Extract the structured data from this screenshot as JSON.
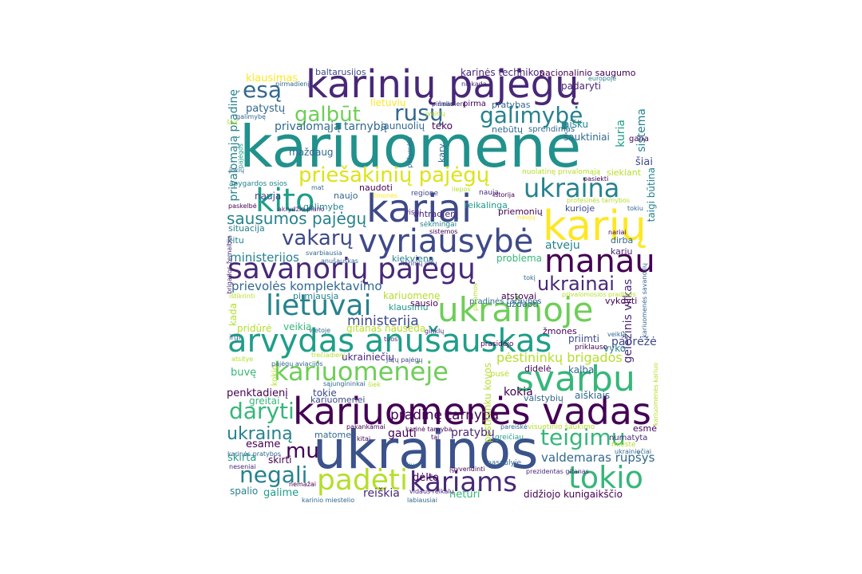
{
  "palette": [
    "#440154",
    "#482878",
    "#3e4989",
    "#31688e",
    "#26828e",
    "#1f9e89",
    "#35b779",
    "#6ece58",
    "#b5de2b",
    "#fde725"
  ],
  "words": [
    {
      "text": "kariuomenė",
      "color": "#21918c"
    },
    {
      "text": "ukrainos",
      "color": "#3b528b"
    },
    {
      "text": "karinių pajėgų",
      "color": "#482878"
    },
    {
      "text": "kariuomenės vadas",
      "color": "#440154"
    },
    {
      "text": "arvydas anušauskas",
      "color": "#1f9e89"
    },
    {
      "text": "kariai",
      "color": "#3e4989"
    },
    {
      "text": "savanorių pajėgų",
      "color": "#482878"
    },
    {
      "text": "vyriausybė",
      "color": "#3e4989"
    },
    {
      "text": "ukrainoje",
      "color": "#6ece58"
    },
    {
      "text": "karių",
      "color": "#fde725"
    },
    {
      "text": "kito",
      "color": "#1f9e89"
    },
    {
      "text": "manau",
      "color": "#440154"
    },
    {
      "text": "svarbu",
      "color": "#35b779"
    },
    {
      "text": "kariuomenėje",
      "color": "#6ece58"
    },
    {
      "text": "lietuvai",
      "color": "#26828e"
    },
    {
      "text": "tokio",
      "color": "#35b779"
    },
    {
      "text": "padėti",
      "color": "#b5de2b"
    },
    {
      "text": "kariams",
      "color": "#482878"
    },
    {
      "text": "ukraina",
      "color": "#26828e"
    },
    {
      "text": "priešakinių pajėgų",
      "color": "#dde318"
    },
    {
      "text": "galbūt",
      "color": "#6ece58"
    },
    {
      "text": "rusų",
      "color": "#31688e"
    },
    {
      "text": "galimybė",
      "color": "#26828e"
    },
    {
      "text": "esą",
      "color": "#31688e"
    },
    {
      "text": "vakarų",
      "color": "#3e4989"
    },
    {
      "text": "sausumos pajėgų",
      "color": "#26828e"
    },
    {
      "text": "ukrainai",
      "color": "#482878"
    },
    {
      "text": "daryti",
      "color": "#35b779"
    },
    {
      "text": "teigimu",
      "color": "#35b779"
    },
    {
      "text": "negali",
      "color": "#26828e"
    },
    {
      "text": "mu",
      "color": "#440154"
    },
    {
      "text": "ukrainą",
      "color": "#26828e"
    },
    {
      "text": "valdemaras rupšys",
      "color": "#31688e"
    },
    {
      "text": "pėstininkų brigados",
      "color": "#b5de2b"
    },
    {
      "text": "pradinę tarnybą",
      "color": "#440154"
    },
    {
      "text": "ministerija",
      "color": "#3e4989"
    },
    {
      "text": "prievolės komplektavimo",
      "color": "#31688e"
    },
    {
      "text": "ministerijos",
      "color": "#26828e"
    },
    {
      "text": "privalomąją tarnybą",
      "color": "#31688e"
    },
    {
      "text": "klausimas",
      "color": "#fde725"
    },
    {
      "text": "baltarusijos",
      "color": "#3e4989"
    },
    {
      "text": "karinės technikos",
      "color": "#482878"
    },
    {
      "text": "nacionalinio saugumo",
      "color": "#440154"
    },
    {
      "text": "patystų",
      "color": "#31688e"
    },
    {
      "text": "privalomąją pradinę",
      "color": "#26828e"
    },
    {
      "text": "lietuvių",
      "color": "#fde725"
    },
    {
      "text": "šauktiniai",
      "color": "#31688e"
    },
    {
      "text": "sistema",
      "color": "#26828e"
    },
    {
      "text": "kuria",
      "color": "#1f9e89"
    },
    {
      "text": "šiai",
      "color": "#3e4989"
    },
    {
      "text": "taigi būtina",
      "color": "#26828e"
    },
    {
      "text": "geležinis vilkas",
      "color": "#482878"
    },
    {
      "text": "pestininku kovos",
      "color": "#b5de2b"
    },
    {
      "text": "penktadienį",
      "color": "#440154"
    },
    {
      "text": "kokia",
      "color": "#440154"
    },
    {
      "text": "atveju",
      "color": "#26828e"
    },
    {
      "text": "problema",
      "color": "#35b779"
    },
    {
      "text": "pabrėžė",
      "color": "#3e4989"
    },
    {
      "text": "pratybų",
      "color": "#482878"
    },
    {
      "text": "gauti",
      "color": "#440154"
    },
    {
      "text": "dėlto",
      "color": "#440154"
    },
    {
      "text": "reiškia",
      "color": "#482878"
    },
    {
      "text": "neturi",
      "color": "#35b779"
    },
    {
      "text": "didžiojo kunigaikščio",
      "color": "#440154"
    },
    {
      "text": "spalio",
      "color": "#26828e"
    },
    {
      "text": "galime",
      "color": "#1f9e89"
    },
    {
      "text": "skirta",
      "color": "#1f9e89"
    },
    {
      "text": "skirti",
      "color": "#440154"
    },
    {
      "text": "esame",
      "color": "#440154"
    },
    {
      "text": "matome",
      "color": "#31688e"
    },
    {
      "text": "nauja",
      "color": "#3e4989"
    },
    {
      "text": "situacija",
      "color": "#26828e"
    },
    {
      "text": "kitu",
      "color": "#26828e"
    },
    {
      "text": "kada",
      "color": "#b5de2b"
    },
    {
      "text": "pridūrė",
      "color": "#b5de2b"
    },
    {
      "text": "veikia",
      "color": "#35b779"
    },
    {
      "text": "buvę",
      "color": "#35b779"
    },
    {
      "text": "greitai",
      "color": "#35b779"
    },
    {
      "text": "tokie",
      "color": "#3e4989"
    },
    {
      "text": "kariuomenei",
      "color": "#3e4989"
    },
    {
      "text": "ukrainiečių",
      "color": "#482878"
    },
    {
      "text": "gitanas nausėda",
      "color": "#b5de2b"
    },
    {
      "text": "kariuomenę",
      "color": "#b5de2b"
    },
    {
      "text": "klausimu",
      "color": "#1f9e89"
    },
    {
      "text": "sausio",
      "color": "#440154"
    },
    {
      "text": "atstovai",
      "color": "#440154"
    },
    {
      "text": "užduoti",
      "color": "#31688e"
    },
    {
      "text": "vykdyti",
      "color": "#440154"
    },
    {
      "text": "priimti",
      "color": "#3e4989"
    },
    {
      "text": "vyko",
      "color": "#26828e"
    },
    {
      "text": "kalba",
      "color": "#31688e"
    },
    {
      "text": "didelė",
      "color": "#440154"
    },
    {
      "text": "žmones",
      "color": "#440154"
    },
    {
      "text": "aiškiais",
      "color": "#31688e"
    },
    {
      "text": "valstybių",
      "color": "#31688e"
    },
    {
      "text": "esmė",
      "color": "#440154"
    },
    {
      "text": "numatyta",
      "color": "#482878"
    },
    {
      "text": "pirmiausia",
      "color": "#26828e"
    },
    {
      "text": "kiekviena",
      "color": "#26828e"
    },
    {
      "text": "dirba",
      "color": "#31688e"
    },
    {
      "text": "kariu",
      "color": "#482878"
    },
    {
      "text": "naudoti",
      "color": "#440154"
    },
    {
      "text": "naujo",
      "color": "#31688e"
    },
    {
      "text": "galimybe",
      "color": "#26828e"
    },
    {
      "text": "reikalinga",
      "color": "#1f9e89"
    },
    {
      "text": "priemonių",
      "color": "#440154"
    },
    {
      "text": "kurioje",
      "color": "#3e4989"
    },
    {
      "text": "antradienį",
      "color": "#482878"
    },
    {
      "text": "nauja",
      "color": "#482878"
    },
    {
      "text": "regione",
      "color": "#3e4989"
    },
    {
      "text": "maždaug",
      "color": "#31688e"
    },
    {
      "text": "jaunuolių",
      "color": "#31688e"
    },
    {
      "text": "teko",
      "color": "#440154"
    },
    {
      "text": "nebūtų",
      "color": "#31688e"
    },
    {
      "text": "pratybas",
      "color": "#31688e"
    },
    {
      "text": "siekiant",
      "color": "#b5de2b"
    },
    {
      "text": "padaryti",
      "color": "#482878"
    },
    {
      "text": "aišku",
      "color": "#26828e"
    },
    {
      "text": "sprendimas",
      "color": "#31688e"
    },
    {
      "text": "gana",
      "color": "#440154"
    },
    {
      "text": "pirma",
      "color": "#440154"
    },
    {
      "text": "šalia",
      "color": "#31688e"
    },
    {
      "text": "pirmadienį",
      "color": "#31688e"
    },
    {
      "text": "europoje",
      "color": "#26828e"
    },
    {
      "text": "niekada",
      "color": "#482878"
    },
    {
      "text": "kary",
      "color": "#31688e"
    },
    {
      "text": "nuolatinę privalomąją",
      "color": "#b5de2b"
    },
    {
      "text": "paskelbė",
      "color": "#440154"
    },
    {
      "text": "istorija",
      "color": "#440154"
    },
    {
      "text": "profesinės tarnybos",
      "color": "#b5de2b"
    },
    {
      "text": "tokiu",
      "color": "#31688e"
    },
    {
      "text": "pradinės tarnybos",
      "color": "#31688e"
    },
    {
      "text": "pirmadienį",
      "color": "#482878"
    },
    {
      "text": "galimybę",
      "color": "#31688e"
    },
    {
      "text": "apygardos osios",
      "color": "#26828e"
    },
    {
      "text": "akrydžio plano",
      "color": "#482878"
    },
    {
      "text": "visgi",
      "color": "#482878"
    },
    {
      "text": "sėkmingai",
      "color": "#26828e"
    },
    {
      "text": "sistemos",
      "color": "#440154"
    },
    {
      "text": "svarbiausia",
      "color": "#31688e"
    },
    {
      "text": "anušauskas",
      "color": "#31688e"
    },
    {
      "text": "karinių jūrų",
      "color": "#3e4989"
    },
    {
      "text": "irgi",
      "color": "#31688e"
    },
    {
      "text": "prasidėjo",
      "color": "#440154"
    },
    {
      "text": "tuos",
      "color": "#482878"
    },
    {
      "text": "priklauso",
      "color": "#440154"
    },
    {
      "text": "kokio",
      "color": "#b5de2b"
    },
    {
      "text": "pusė",
      "color": "#b5de2b"
    },
    {
      "text": "sąjungininkai",
      "color": "#31688e"
    },
    {
      "text": "jūrų pajėgų",
      "color": "#3e4989"
    },
    {
      "text": "pakankamai",
      "color": "#440154"
    },
    {
      "text": "pareiškė",
      "color": "#31688e"
    },
    {
      "text": "visuotinio šaukimo",
      "color": "#b5de2b"
    },
    {
      "text": "mieste",
      "color": "#b5de2b"
    },
    {
      "text": "įgyvendinti",
      "color": "#440154"
    },
    {
      "text": "prezidentas gitanas",
      "color": "#482878"
    },
    {
      "text": "vidaus reikalų",
      "color": "#482878"
    },
    {
      "text": "labiausiai",
      "color": "#31688e"
    },
    {
      "text": "karinio miestelio",
      "color": "#31688e"
    },
    {
      "text": "nemažai",
      "color": "#440154"
    },
    {
      "text": "neseniai",
      "color": "#482878"
    },
    {
      "text": "karinės pratybos",
      "color": "#31688e"
    },
    {
      "text": "kitai",
      "color": "#440154"
    },
    {
      "text": "šiuo",
      "color": "#31688e"
    },
    {
      "text": "pasaulyje",
      "color": "#31688e"
    },
    {
      "text": "greičiau",
      "color": "#1f9e89"
    },
    {
      "text": "ukrainiečiai",
      "color": "#31688e"
    },
    {
      "text": "brigados žemaitija",
      "color": "#482878"
    },
    {
      "text": "kariuomenės savanorių",
      "color": "#31688e"
    },
    {
      "text": "kariuomenės kariuo",
      "color": "#b5de2b"
    },
    {
      "text": "pajėgos",
      "color": "#1f9e89"
    },
    {
      "text": "tai",
      "color": "#440154"
    },
    {
      "text": "jokių",
      "color": "#31688e"
    },
    {
      "text": "ištikrinti",
      "color": "#b5de2b"
    },
    {
      "text": "atsitye",
      "color": "#b5de2b"
    },
    {
      "text": "vietoje",
      "color": "#31688e"
    },
    {
      "text": "pajėgų aviacijos",
      "color": "#31688e"
    },
    {
      "text": "trečiadienį",
      "color": "#b5de2b"
    },
    {
      "text": "karinė tarnyba",
      "color": "#440154"
    },
    {
      "text": "šiek",
      "color": "#b5de2b"
    },
    {
      "text": "žmonės",
      "color": "#fde725"
    },
    {
      "text": "liepos",
      "color": "#b5de2b"
    },
    {
      "text": "įvairių",
      "color": "#b5de2b"
    },
    {
      "text": "mat",
      "color": "#31688e"
    },
    {
      "text": "pasiekti",
      "color": "#440154"
    },
    {
      "text": "naujų",
      "color": "#fde725"
    },
    {
      "text": "nariai",
      "color": "#440154"
    },
    {
      "text": "privalomosios pradinės",
      "color": "#b5de2b"
    },
    {
      "text": "veiklą",
      "color": "#31688e"
    },
    {
      "text": "šalį",
      "color": "#b5de2b"
    },
    {
      "text": "ginklų",
      "color": "#482878"
    },
    {
      "text": "tokį",
      "color": "#31688e"
    },
    {
      "text": "paramos",
      "color": "#b5de2b"
    },
    {
      "text": "pažymėjo",
      "color": "#31688e"
    }
  ]
}
